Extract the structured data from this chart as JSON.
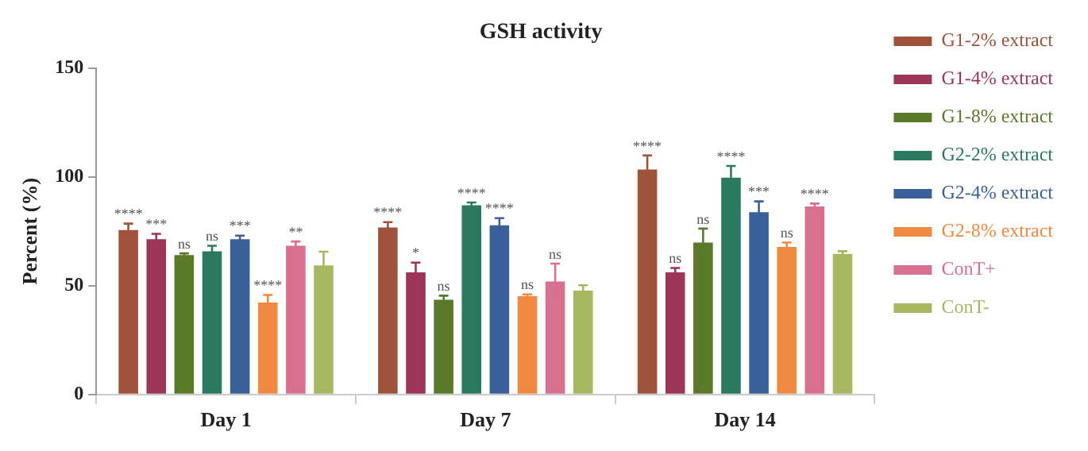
{
  "chart_data": {
    "type": "bar",
    "title": "GSH activity",
    "ylabel": "Percent (%)",
    "categories": [
      "Day 1",
      "Day 7",
      "Day 14"
    ],
    "series": [
      {
        "name": "G1-2% extract",
        "color": "#a0523a",
        "values": [
          75.5,
          76.7,
          103.3
        ],
        "errors": [
          3,
          2.5,
          6.5
        ],
        "value_labels": [
          "****",
          "****",
          "****"
        ]
      },
      {
        "name": "G1-4% extract",
        "color": "#9c3558",
        "values": [
          71.3,
          56.1,
          56.1
        ],
        "errors": [
          2.5,
          4.5,
          2
        ],
        "value_labels": [
          "***",
          "*",
          "ns"
        ]
      },
      {
        "name": "G1-8% extract",
        "color": "#5a7a2a",
        "values": [
          64,
          43.5,
          69.8
        ],
        "errors": [
          0.8,
          1.9,
          6.4
        ],
        "value_labels": [
          "ns",
          "ns",
          "ns"
        ]
      },
      {
        "name": "G2-2% extract",
        "color": "#2a7a60",
        "values": [
          65.8,
          86.9,
          99.6
        ],
        "errors": [
          2.5,
          1.3,
          5.4
        ],
        "value_labels": [
          "ns",
          "****",
          "****"
        ]
      },
      {
        "name": "G2-4% extract",
        "color": "#3a609a",
        "values": [
          71.3,
          77.7,
          83.7
        ],
        "errors": [
          1.7,
          3.3,
          5
        ],
        "value_labels": [
          "***",
          "****",
          "***"
        ]
      },
      {
        "name": "G2-8% extract",
        "color": "#f08a40",
        "values": [
          42.2,
          45.2,
          67.8
        ],
        "errors": [
          3.5,
          0.8,
          2
        ],
        "value_labels": [
          "****",
          "ns",
          "ns"
        ]
      },
      {
        "name": "ConT+",
        "color": "#d87090",
        "values": [
          68.3,
          51.9,
          86.4
        ],
        "errors": [
          2,
          8.2,
          1.3
        ],
        "value_labels": [
          "**",
          "ns",
          "****"
        ]
      },
      {
        "name": "ConT-",
        "color": "#a8b860",
        "values": [
          59.3,
          47.7,
          64.6
        ],
        "errors": [
          6.3,
          2.5,
          1.2
        ],
        "value_labels": [
          null,
          null,
          null
        ]
      }
    ],
    "ylim": [
      0,
      150
    ],
    "yticks": [
      0,
      50,
      100,
      150
    ],
    "grid": false,
    "legend": "right"
  }
}
